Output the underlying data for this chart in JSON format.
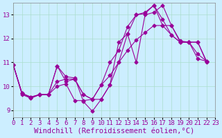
{
  "background_color": "#cceeff",
  "line_color": "#990099",
  "grid_color": "#aaddcc",
  "xlabel": "Windchill (Refroidissement éolien,°C)",
  "xlabel_fontsize": 7.5,
  "tick_fontsize": 6.5,
  "xlim": [
    0,
    23
  ],
  "ylim": [
    8.7,
    13.5
  ],
  "yticks": [
    9,
    10,
    11,
    12,
    13
  ],
  "xticks": [
    0,
    1,
    2,
    3,
    4,
    5,
    6,
    7,
    8,
    9,
    10,
    11,
    12,
    13,
    14,
    15,
    16,
    17,
    18,
    19,
    20,
    21,
    22,
    23
  ],
  "lines": [
    [
      0,
      10.9,
      1,
      9.7,
      2,
      9.55,
      3,
      9.65,
      4,
      9.65,
      5,
      10.85,
      6,
      10.4,
      7,
      10.35,
      8,
      9.35,
      9,
      8.95,
      10,
      9.45,
      11,
      10.05,
      12,
      11.85,
      13,
      12.2,
      14,
      11.0,
      15,
      13.0,
      16,
      13.1,
      17,
      13.4,
      18,
      12.55,
      19,
      11.9,
      20,
      11.85,
      21,
      11.85,
      22,
      11.0
    ],
    [
      0,
      10.9,
      1,
      9.7,
      2,
      9.5,
      3,
      9.65,
      4,
      9.65,
      5,
      10.0,
      6,
      10.1,
      7,
      9.4,
      8,
      9.4,
      9,
      9.45,
      10,
      10.05,
      11,
      10.45,
      12,
      11.0,
      13,
      11.5,
      14,
      11.95,
      15,
      12.25,
      16,
      12.55,
      17,
      12.55,
      18,
      12.55,
      19,
      11.85,
      20,
      11.85,
      21,
      11.15,
      22,
      11.05
    ],
    [
      0,
      10.9,
      1,
      9.65,
      2,
      9.5,
      3,
      9.65,
      4,
      9.65,
      5,
      10.2,
      6,
      10.3,
      7,
      10.3,
      8,
      9.65,
      9,
      9.45,
      10,
      10.05,
      11,
      11.0,
      12,
      11.5,
      13,
      12.5,
      14,
      13.0,
      15,
      13.1,
      16,
      13.4,
      17,
      12.8,
      18,
      12.15,
      19,
      11.85,
      20,
      11.85,
      21,
      11.35,
      22,
      11.05
    ],
    [
      0,
      10.9,
      1,
      9.7,
      2,
      9.55,
      3,
      9.65,
      4,
      9.65,
      5,
      10.85,
      6,
      10.2,
      7,
      10.3,
      8,
      9.65,
      9,
      9.45,
      10,
      9.45,
      11,
      10.05,
      12,
      11.0,
      13,
      12.2,
      14,
      13.0,
      15,
      13.05,
      16,
      13.4,
      17,
      12.55,
      18,
      12.15,
      19,
      11.85,
      20,
      11.85,
      21,
      11.85,
      22,
      11.05
    ]
  ]
}
